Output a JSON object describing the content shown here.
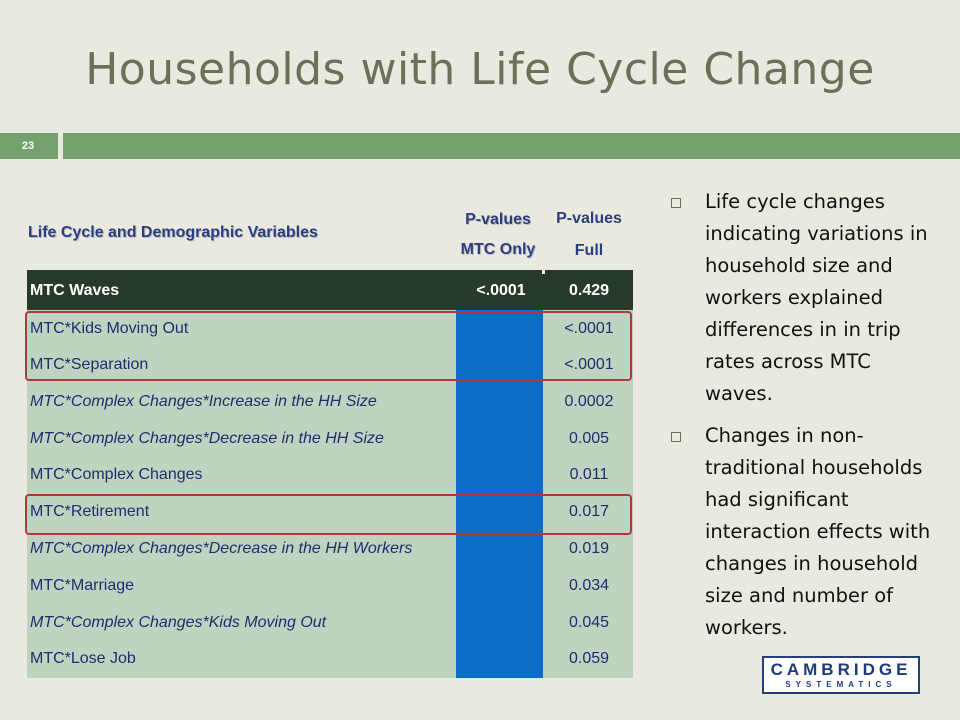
{
  "slide": {
    "title": "Households with Life Cycle Change",
    "number": "23"
  },
  "colors": {
    "background": "#e9e9df",
    "band": "#74a16e",
    "title": "#6b7058",
    "table_body": "#bed3c0",
    "table_header_row": "#283b2b",
    "blue_column": "#0b6dc4",
    "highlight_box": "#b3363c"
  },
  "table": {
    "header": {
      "label": "Life Cycle and Demographic Variables",
      "col1_line1": "P-values",
      "col1_line2": "MTC Only",
      "col2_line1": "P-values",
      "col2_line2": "Full"
    },
    "first_row": {
      "label": "MTC Waves",
      "mtc_only": "<.0001",
      "full": "0.429"
    },
    "rows": [
      {
        "label": "MTC*Kids Moving Out",
        "full": "<.0001"
      },
      {
        "label": "MTC*Separation",
        "full": "<.0001"
      },
      {
        "label": "MTC*Complex Changes*Increase in the HH Size",
        "full": "0.0002"
      },
      {
        "label": "MTC*Complex Changes*Decrease in the HH Size",
        "full": "0.005"
      },
      {
        "label": "MTC*Complex Changes",
        "full": "0.011"
      },
      {
        "label": "MTC*Retirement",
        "full": "0.017"
      },
      {
        "label": "MTC*Complex Changes*Decrease in the HH Workers",
        "full": "0.019"
      },
      {
        "label": "MTC*Marriage",
        "full": "0.034"
      },
      {
        "label": "MTC*Complex Changes*Kids Moving Out",
        "full": "0.045"
      },
      {
        "label": "MTC*Lose Job",
        "full": "0.059"
      }
    ]
  },
  "bullets": [
    "Life cycle changes indicating variations in household size and workers explained differences in in trip rates across MTC waves.",
    "Changes in non-traditional households had significant interaction effects with changes in household size and number of workers."
  ],
  "logo": {
    "line1": "CAMBRIDGE",
    "line2": "SYSTEMATICS"
  }
}
